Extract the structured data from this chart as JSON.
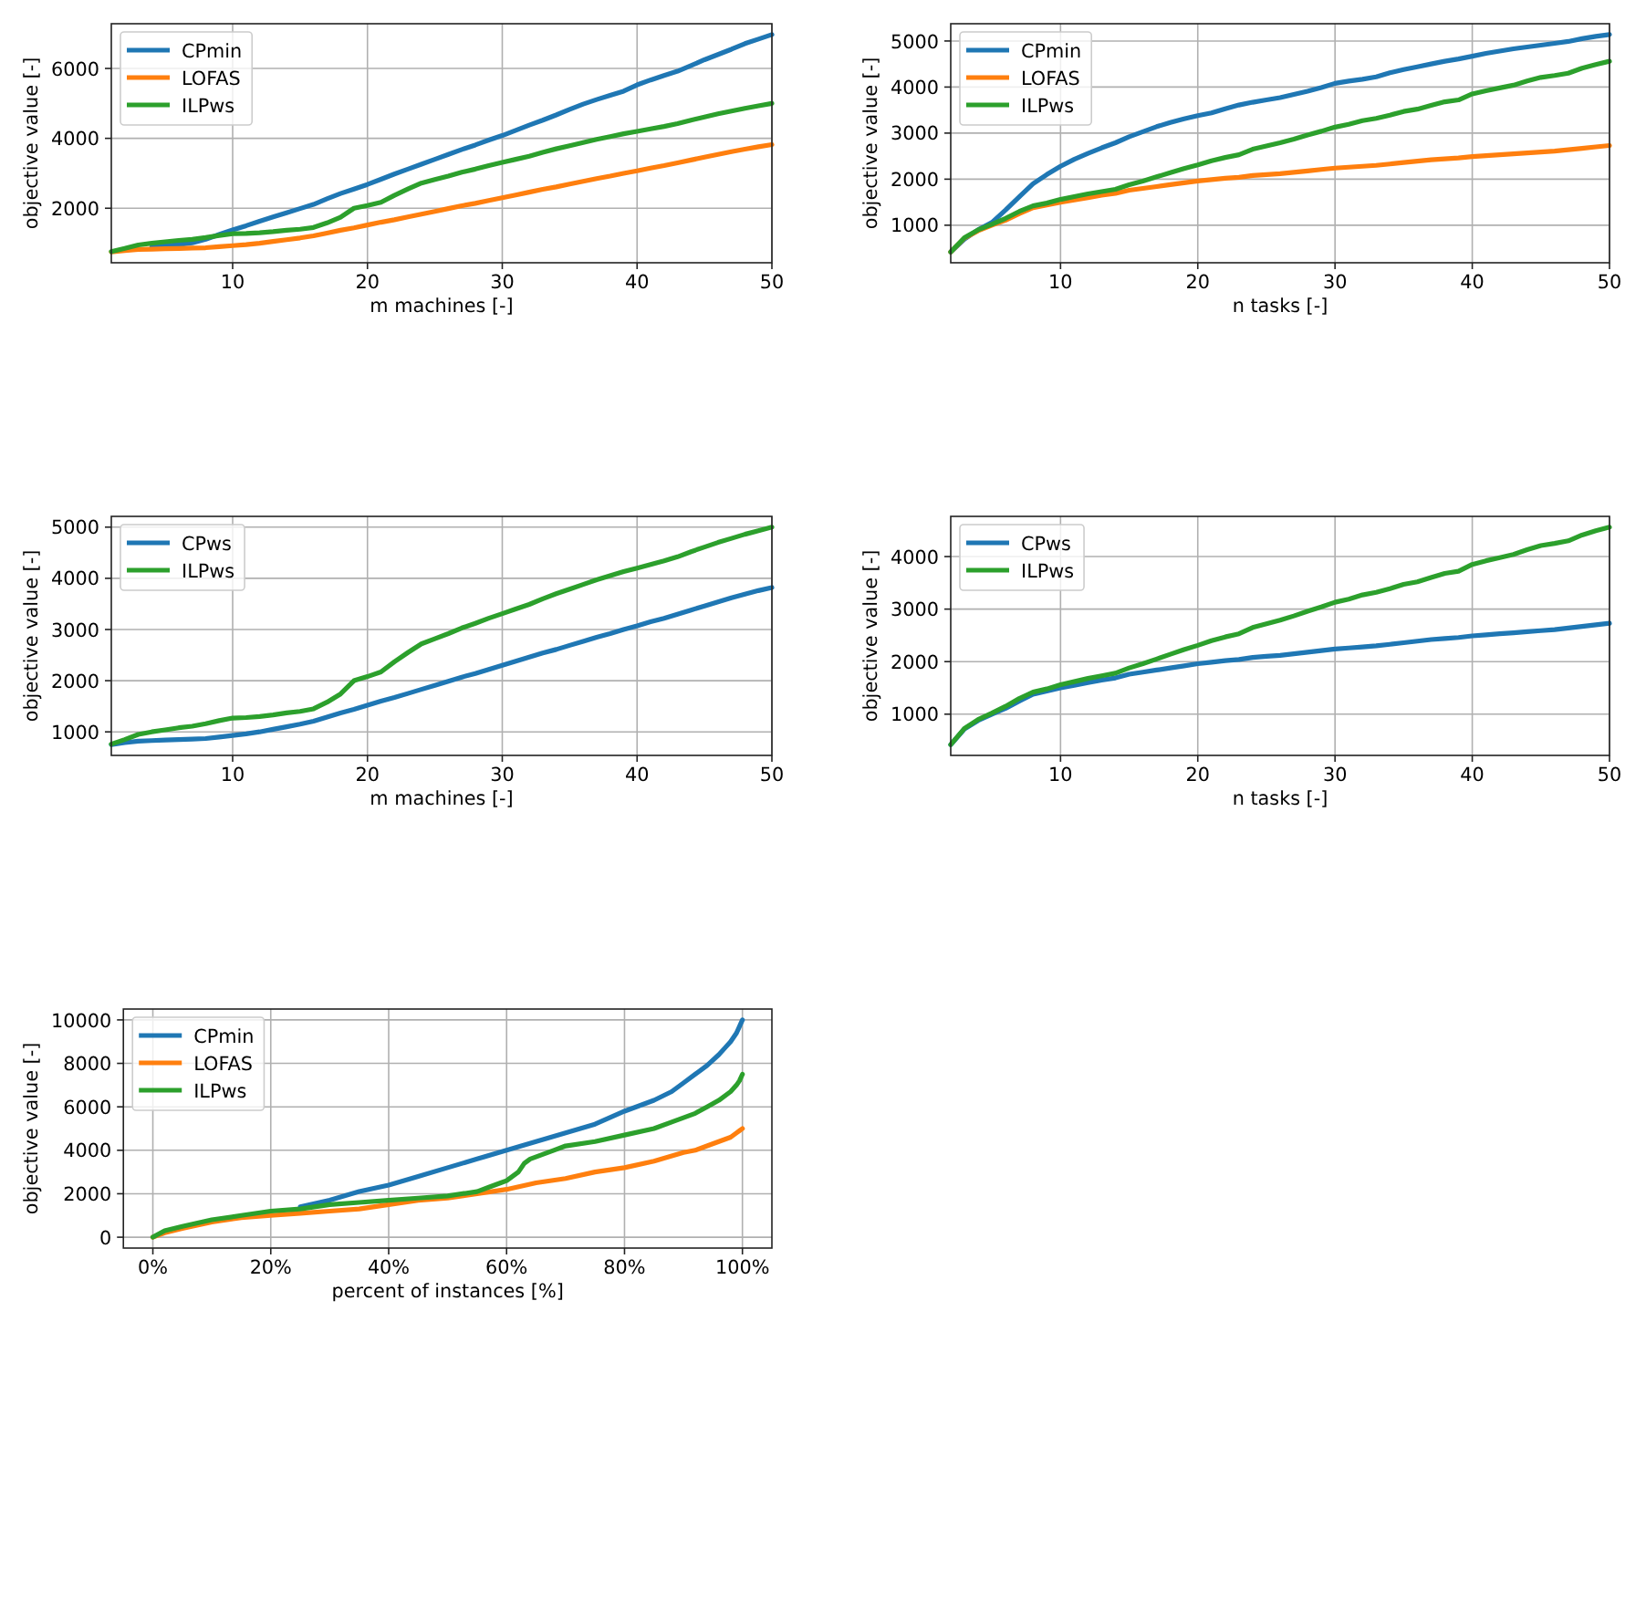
{
  "chart_data": [
    {
      "type": "line",
      "xlabel": "m machines [-]",
      "ylabel": "objective value [-]",
      "grid": true,
      "legend": "top left",
      "xlim": [
        1,
        50
      ],
      "ylim": [
        440,
        7280
      ],
      "xticks": [
        10,
        20,
        30,
        40,
        50
      ],
      "yticks": [
        2000,
        4000,
        6000
      ],
      "x": [
        1,
        2,
        3,
        4,
        5,
        6,
        7,
        8,
        9,
        10,
        11,
        12,
        13,
        14,
        15,
        16,
        17,
        18,
        19,
        20,
        21,
        22,
        23,
        24,
        25,
        26,
        27,
        28,
        29,
        30,
        31,
        32,
        33,
        34,
        35,
        36,
        37,
        38,
        39,
        40,
        41,
        42,
        43,
        44,
        45,
        46,
        47,
        48,
        49,
        50
      ],
      "series": [
        {
          "name": "CPmin",
          "color": "#1f77b4",
          "values": [
            null,
            null,
            null,
            890,
            930,
            960,
            1010,
            1110,
            1250,
            1380,
            1500,
            1630,
            1750,
            1870,
            1990,
            2110,
            2270,
            2420,
            2550,
            2680,
            2830,
            2980,
            3120,
            3260,
            3400,
            3540,
            3680,
            3810,
            3950,
            4080,
            4230,
            4380,
            4520,
            4670,
            4830,
            4980,
            5110,
            5230,
            5350,
            5530,
            5670,
            5800,
            5920,
            6080,
            6250,
            6400,
            6550,
            6710,
            6840,
            6970
          ]
        },
        {
          "name": "LOFAS",
          "color": "#ff7f0e",
          "values": [
            750,
            790,
            820,
            830,
            840,
            850,
            860,
            870,
            900,
            930,
            960,
            1000,
            1050,
            1100,
            1150,
            1210,
            1290,
            1370,
            1440,
            1520,
            1600,
            1670,
            1750,
            1830,
            1910,
            1990,
            2070,
            2140,
            2220,
            2300,
            2380,
            2460,
            2540,
            2610,
            2690,
            2770,
            2850,
            2920,
            3000,
            3070,
            3150,
            3220,
            3300,
            3380,
            3460,
            3540,
            3620,
            3690,
            3760,
            3820
          ]
        },
        {
          "name": "ILPws",
          "color": "#2ca02c",
          "values": [
            760,
            850,
            950,
            1000,
            1040,
            1080,
            1110,
            1160,
            1220,
            1270,
            1280,
            1300,
            1330,
            1370,
            1400,
            1450,
            1580,
            1740,
            2000,
            2080,
            2170,
            2370,
            2550,
            2720,
            2820,
            2920,
            3030,
            3120,
            3220,
            3310,
            3400,
            3490,
            3600,
            3700,
            3790,
            3880,
            3970,
            4050,
            4130,
            4200,
            4270,
            4340,
            4420,
            4520,
            4610,
            4700,
            4780,
            4860,
            4930,
            5000
          ]
        }
      ]
    },
    {
      "type": "line",
      "xlabel": "n tasks [-]",
      "ylabel": "objective value [-]",
      "grid": true,
      "legend": "top left",
      "xlim": [
        2,
        50
      ],
      "ylim": [
        185,
        5375
      ],
      "xticks": [
        10,
        20,
        30,
        40,
        50
      ],
      "yticks": [
        1000,
        2000,
        3000,
        4000,
        5000
      ],
      "x": [
        2,
        3,
        4,
        5,
        6,
        7,
        8,
        9,
        10,
        11,
        12,
        13,
        14,
        15,
        16,
        17,
        18,
        19,
        20,
        21,
        22,
        23,
        24,
        25,
        26,
        27,
        28,
        29,
        30,
        31,
        32,
        33,
        34,
        35,
        36,
        37,
        38,
        39,
        40,
        41,
        42,
        43,
        44,
        45,
        46,
        47,
        48,
        49,
        50
      ],
      "series": [
        {
          "name": "CPmin",
          "color": "#1f77b4",
          "values": [
            420,
            700,
            900,
            1060,
            1330,
            1620,
            1900,
            2100,
            2280,
            2430,
            2560,
            2680,
            2790,
            2920,
            3030,
            3140,
            3230,
            3310,
            3380,
            3440,
            3530,
            3610,
            3670,
            3720,
            3770,
            3840,
            3910,
            3990,
            4080,
            4130,
            4170,
            4220,
            4310,
            4380,
            4440,
            4500,
            4560,
            4610,
            4670,
            4730,
            4780,
            4830,
            4870,
            4910,
            4950,
            4990,
            5050,
            5100,
            5140
          ]
        },
        {
          "name": "LOFAS",
          "color": "#ff7f0e",
          "values": [
            420,
            720,
            880,
            1000,
            1110,
            1250,
            1380,
            1440,
            1500,
            1550,
            1600,
            1650,
            1690,
            1760,
            1800,
            1840,
            1880,
            1920,
            1960,
            1990,
            2020,
            2040,
            2080,
            2100,
            2120,
            2150,
            2180,
            2210,
            2240,
            2260,
            2280,
            2300,
            2330,
            2360,
            2390,
            2420,
            2440,
            2460,
            2490,
            2510,
            2530,
            2550,
            2570,
            2590,
            2610,
            2640,
            2670,
            2700,
            2730
          ]
        },
        {
          "name": "ILPws",
          "color": "#2ca02c",
          "values": [
            420,
            730,
            900,
            1020,
            1150,
            1300,
            1420,
            1480,
            1560,
            1620,
            1680,
            1730,
            1780,
            1880,
            1960,
            2050,
            2140,
            2230,
            2310,
            2400,
            2470,
            2530,
            2650,
            2720,
            2790,
            2870,
            2960,
            3040,
            3130,
            3190,
            3270,
            3320,
            3390,
            3470,
            3520,
            3600,
            3680,
            3720,
            3850,
            3920,
            3980,
            4040,
            4130,
            4210,
            4250,
            4300,
            4410,
            4490,
            4560
          ]
        }
      ]
    },
    {
      "type": "line",
      "xlabel": "m machines [-]",
      "ylabel": "objective value [-]",
      "grid": true,
      "legend": "top left",
      "xlim": [
        1,
        50
      ],
      "ylim": [
        540,
        5210
      ],
      "xticks": [
        10,
        20,
        30,
        40,
        50
      ],
      "yticks": [
        1000,
        2000,
        3000,
        4000,
        5000
      ],
      "x": [
        1,
        2,
        3,
        4,
        5,
        6,
        7,
        8,
        9,
        10,
        11,
        12,
        13,
        14,
        15,
        16,
        17,
        18,
        19,
        20,
        21,
        22,
        23,
        24,
        25,
        26,
        27,
        28,
        29,
        30,
        31,
        32,
        33,
        34,
        35,
        36,
        37,
        38,
        39,
        40,
        41,
        42,
        43,
        44,
        45,
        46,
        47,
        48,
        49,
        50
      ],
      "series": [
        {
          "name": "CPws",
          "color": "#1f77b4",
          "values": [
            750,
            790,
            820,
            830,
            840,
            850,
            860,
            870,
            900,
            930,
            960,
            1000,
            1050,
            1100,
            1150,
            1210,
            1290,
            1370,
            1440,
            1520,
            1600,
            1670,
            1750,
            1830,
            1910,
            1990,
            2070,
            2140,
            2220,
            2300,
            2380,
            2460,
            2540,
            2610,
            2690,
            2770,
            2850,
            2920,
            3000,
            3070,
            3150,
            3220,
            3300,
            3380,
            3460,
            3540,
            3620,
            3690,
            3760,
            3820
          ]
        },
        {
          "name": "ILPws",
          "color": "#2ca02c",
          "values": [
            760,
            850,
            950,
            1000,
            1040,
            1080,
            1110,
            1160,
            1220,
            1270,
            1280,
            1300,
            1330,
            1370,
            1400,
            1450,
            1580,
            1740,
            2000,
            2080,
            2170,
            2370,
            2550,
            2720,
            2820,
            2920,
            3030,
            3120,
            3220,
            3310,
            3400,
            3490,
            3600,
            3700,
            3790,
            3880,
            3970,
            4050,
            4130,
            4200,
            4270,
            4340,
            4420,
            4520,
            4610,
            4700,
            4780,
            4860,
            4930,
            5000
          ]
        }
      ]
    },
    {
      "type": "line",
      "xlabel": "n tasks [-]",
      "ylabel": "objective value [-]",
      "grid": true,
      "legend": "top left",
      "xlim": [
        2,
        50
      ],
      "ylim": [
        215,
        4765
      ],
      "xticks": [
        10,
        20,
        30,
        40,
        50
      ],
      "yticks": [
        1000,
        2000,
        3000,
        4000
      ],
      "x": [
        2,
        3,
        4,
        5,
        6,
        7,
        8,
        9,
        10,
        11,
        12,
        13,
        14,
        15,
        16,
        17,
        18,
        19,
        20,
        21,
        22,
        23,
        24,
        25,
        26,
        27,
        28,
        29,
        30,
        31,
        32,
        33,
        34,
        35,
        36,
        37,
        38,
        39,
        40,
        41,
        42,
        43,
        44,
        45,
        46,
        47,
        48,
        49,
        50
      ],
      "series": [
        {
          "name": "CPws",
          "color": "#1f77b4",
          "values": [
            420,
            720,
            880,
            1000,
            1110,
            1250,
            1380,
            1440,
            1500,
            1550,
            1600,
            1650,
            1690,
            1760,
            1800,
            1840,
            1880,
            1920,
            1960,
            1990,
            2020,
            2040,
            2080,
            2100,
            2120,
            2150,
            2180,
            2210,
            2240,
            2260,
            2280,
            2300,
            2330,
            2360,
            2390,
            2420,
            2440,
            2460,
            2490,
            2510,
            2530,
            2550,
            2570,
            2590,
            2610,
            2640,
            2670,
            2700,
            2730
          ]
        },
        {
          "name": "ILPws",
          "color": "#2ca02c",
          "values": [
            420,
            730,
            900,
            1020,
            1150,
            1300,
            1420,
            1480,
            1560,
            1620,
            1680,
            1730,
            1780,
            1880,
            1960,
            2050,
            2140,
            2230,
            2310,
            2400,
            2470,
            2530,
            2650,
            2720,
            2790,
            2870,
            2960,
            3040,
            3130,
            3190,
            3270,
            3320,
            3390,
            3470,
            3520,
            3600,
            3680,
            3720,
            3850,
            3920,
            3980,
            4040,
            4130,
            4210,
            4250,
            4300,
            4410,
            4490,
            4560
          ]
        }
      ]
    },
    {
      "type": "line",
      "xlabel": "percent of instances [%]",
      "ylabel": "objective value [-]",
      "grid": true,
      "legend": "top left",
      "xlim": [
        -5,
        105
      ],
      "ylim": [
        -500,
        10500
      ],
      "xticks": [
        {
          "value": 0,
          "label": "0%"
        },
        {
          "value": 20,
          "label": "20%"
        },
        {
          "value": 40,
          "label": "40%"
        },
        {
          "value": 60,
          "label": "60%"
        },
        {
          "value": 80,
          "label": "80%"
        },
        {
          "value": 100,
          "label": "100%"
        }
      ],
      "yticks": [
        0,
        2000,
        4000,
        6000,
        8000,
        10000
      ],
      "series": [
        {
          "name": "CPmin",
          "color": "#1f77b4",
          "x": [
            25,
            30,
            35,
            40,
            45,
            50,
            55,
            60,
            65,
            70,
            75,
            80,
            85,
            88,
            90,
            92,
            94,
            96,
            97,
            98,
            99,
            99.5,
            100
          ],
          "values": [
            1400,
            1700,
            2100,
            2400,
            2800,
            3200,
            3600,
            4000,
            4400,
            4800,
            5200,
            5800,
            6300,
            6700,
            7100,
            7500,
            7900,
            8400,
            8700,
            9000,
            9400,
            9700,
            10000
          ]
        },
        {
          "name": "LOFAS",
          "color": "#ff7f0e",
          "x": [
            0,
            2,
            5,
            10,
            15,
            20,
            25,
            30,
            35,
            40,
            45,
            50,
            55,
            60,
            65,
            70,
            75,
            80,
            85,
            90,
            92,
            94,
            96,
            98,
            99,
            99.5,
            100
          ],
          "values": [
            0,
            200,
            400,
            700,
            900,
            1000,
            1100,
            1200,
            1300,
            1500,
            1700,
            1800,
            2000,
            2200,
            2500,
            2700,
            3000,
            3200,
            3500,
            3900,
            4000,
            4200,
            4400,
            4600,
            4800,
            4900,
            5000
          ]
        },
        {
          "name": "ILPws",
          "color": "#2ca02c",
          "x": [
            0,
            2,
            5,
            10,
            15,
            20,
            25,
            30,
            35,
            40,
            45,
            50,
            55,
            57,
            59,
            60,
            61,
            62,
            63,
            64,
            66,
            68,
            70,
            75,
            80,
            85,
            88,
            90,
            92,
            94,
            96,
            98,
            99,
            99.5,
            100
          ],
          "values": [
            0,
            300,
            500,
            800,
            1000,
            1200,
            1300,
            1500,
            1600,
            1700,
            1800,
            1900,
            2100,
            2300,
            2500,
            2600,
            2800,
            3000,
            3400,
            3600,
            3800,
            4000,
            4200,
            4400,
            4700,
            5000,
            5300,
            5500,
            5700,
            6000,
            6300,
            6700,
            7000,
            7200,
            7500
          ]
        }
      ]
    }
  ]
}
